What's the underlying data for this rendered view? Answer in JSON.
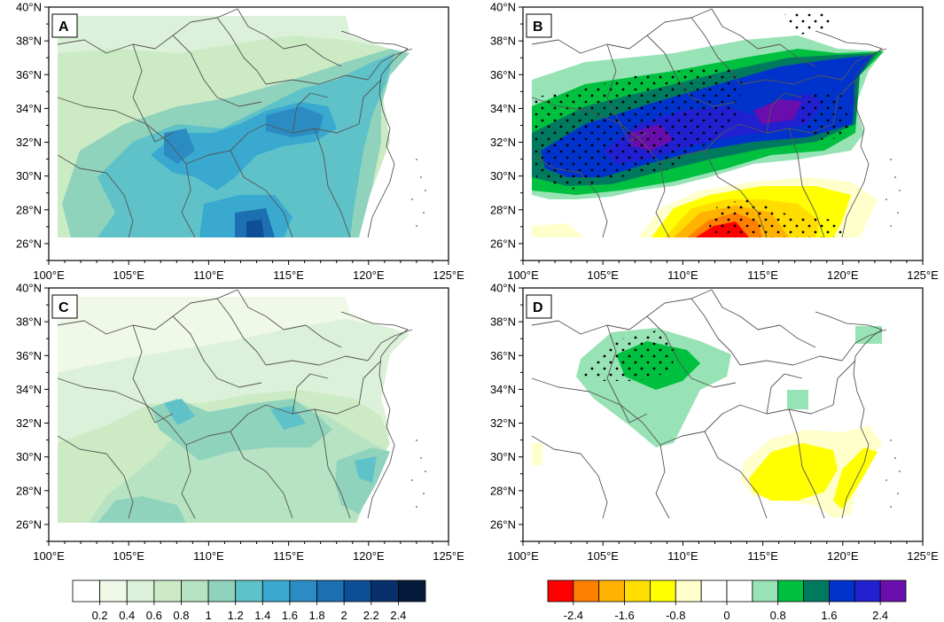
{
  "figure": {
    "panels": [
      {
        "letter": "A",
        "palette": "blue"
      },
      {
        "letter": "B",
        "palette": "diverging",
        "stippled": true
      },
      {
        "letter": "C",
        "palette": "blue"
      },
      {
        "letter": "D",
        "palette": "diverging",
        "stippled": true
      }
    ],
    "lat_labels": [
      "26°N",
      "28°N",
      "30°N",
      "32°N",
      "34°N",
      "36°N",
      "38°N",
      "40°N"
    ],
    "lon_labels": [
      "100°E",
      "105°E",
      "110°E",
      "115°E",
      "120°E",
      "125°E"
    ],
    "colorbar_left": {
      "labels": [
        "0.2",
        "0.4",
        "0.6",
        "0.8",
        "1",
        "1.2",
        "1.4",
        "1.6",
        "1.8",
        "2",
        "2.2",
        "2.4"
      ],
      "colors": [
        "#ffffff",
        "#f0f9e8",
        "#dcf1d9",
        "#ccebc5",
        "#b7e3c2",
        "#8fd3bd",
        "#5ec2c8",
        "#3aa9d0",
        "#2b8cc4",
        "#1c6fb0",
        "#0d4f94",
        "#08306b",
        "#041a3a"
      ]
    },
    "colorbar_right": {
      "labels": [
        "-2.4",
        "-1.6",
        "-0.8",
        "0",
        "0.8",
        "1.6",
        "2.4"
      ],
      "colors": [
        "#ff0000",
        "#ff7f00",
        "#ffb300",
        "#ffdd00",
        "#ffff00",
        "#ffffcc",
        "#ffffff",
        "#ffffff",
        "#98e3b5",
        "#00c040",
        "#007a5e",
        "#0033cc",
        "#2020d0",
        "#6a0dad"
      ]
    }
  }
}
